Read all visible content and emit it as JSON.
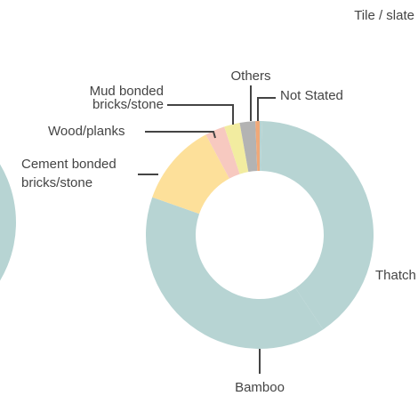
{
  "chart_data": {
    "type": "donut",
    "categories": [
      "Tile / slate",
      "Thatch",
      "Bamboo",
      "Cement bonded bricks/stone",
      "Wood/planks",
      "Mud bonded bricks/stone",
      "Others",
      "Not Stated"
    ],
    "values": [
      0.3,
      40,
      39.5,
      11.7,
      2.8,
      2.2,
      2.2,
      0.6
    ],
    "colors": [
      "#b7d4d3",
      "#b7d4d3",
      "#b7d4d3",
      "#fde09a",
      "#f7c9c0",
      "#f2eca0",
      "#b3b3b3",
      "#f0a878"
    ]
  }
}
